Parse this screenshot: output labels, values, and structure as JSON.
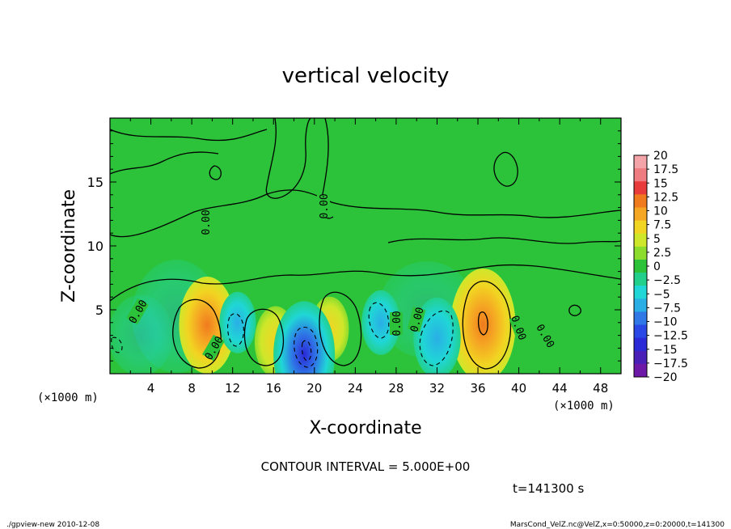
{
  "chart_data": {
    "type": "heatmap",
    "title": "vertical velocity",
    "xlabel": "X-coordinate",
    "ylabel": "Z-coordinate",
    "x_unit_left": "(×1000 m)",
    "x_unit_right": "(×1000 m)",
    "xlim": [
      0,
      50
    ],
    "ylim": [
      0,
      20
    ],
    "x_ticks": [
      "4",
      "8",
      "12",
      "16",
      "20",
      "24",
      "28",
      "32",
      "36",
      "40",
      "44",
      "48"
    ],
    "y_ticks": [
      "5",
      "10",
      "15"
    ],
    "contour_interval": "CONTOUR INTERVAL = 5.000E+00",
    "time_label": "t=141300 s",
    "contour_label": "0.00",
    "colorbar": {
      "labels": [
        "20",
        "17.5",
        "15",
        "12.5",
        "10",
        "7.5",
        "5",
        "2.5",
        "0",
        "−2.5",
        "−5",
        "−7.5",
        "−10",
        "−12.5",
        "−15",
        "−17.5",
        "−20"
      ],
      "colors": [
        "#f4a3a8",
        "#ef7c80",
        "#ea3b3b",
        "#f07a1e",
        "#f5a623",
        "#f2d422",
        "#cfe72a",
        "#8bdc2d",
        "#2cc33a",
        "#22d08c",
        "#20d6d6",
        "#2aaee6",
        "#2f78e6",
        "#2a48e6",
        "#2a2ad8",
        "#4a1fb8",
        "#6e18a8"
      ]
    },
    "features": [
      {
        "x": 9.5,
        "z": 3.8,
        "w": 8.5,
        "kind": "updraft"
      },
      {
        "x": 16.2,
        "z": 2.5,
        "w": 4.5,
        "kind": "updraft"
      },
      {
        "x": 21.5,
        "z": 3.5,
        "w": 3.5,
        "kind": "updraft"
      },
      {
        "x": 36.5,
        "z": 3.8,
        "w": 11,
        "kind": "updraft"
      },
      {
        "x": 19.0,
        "z": 1.5,
        "w": -10,
        "kind": "downdraft"
      },
      {
        "x": 32.0,
        "z": 2.8,
        "w": -6,
        "kind": "downdraft"
      },
      {
        "x": 26.5,
        "z": 4.0,
        "w": -3.5,
        "kind": "downdraft"
      },
      {
        "x": 12.5,
        "z": 4.0,
        "w": -3,
        "kind": "downdraft"
      }
    ]
  },
  "footer": {
    "left": "./gpview-new  2010-12-08",
    "right": "MarsCond_VelZ.nc@VelZ,x=0:50000,z=0:20000,t=141300"
  }
}
